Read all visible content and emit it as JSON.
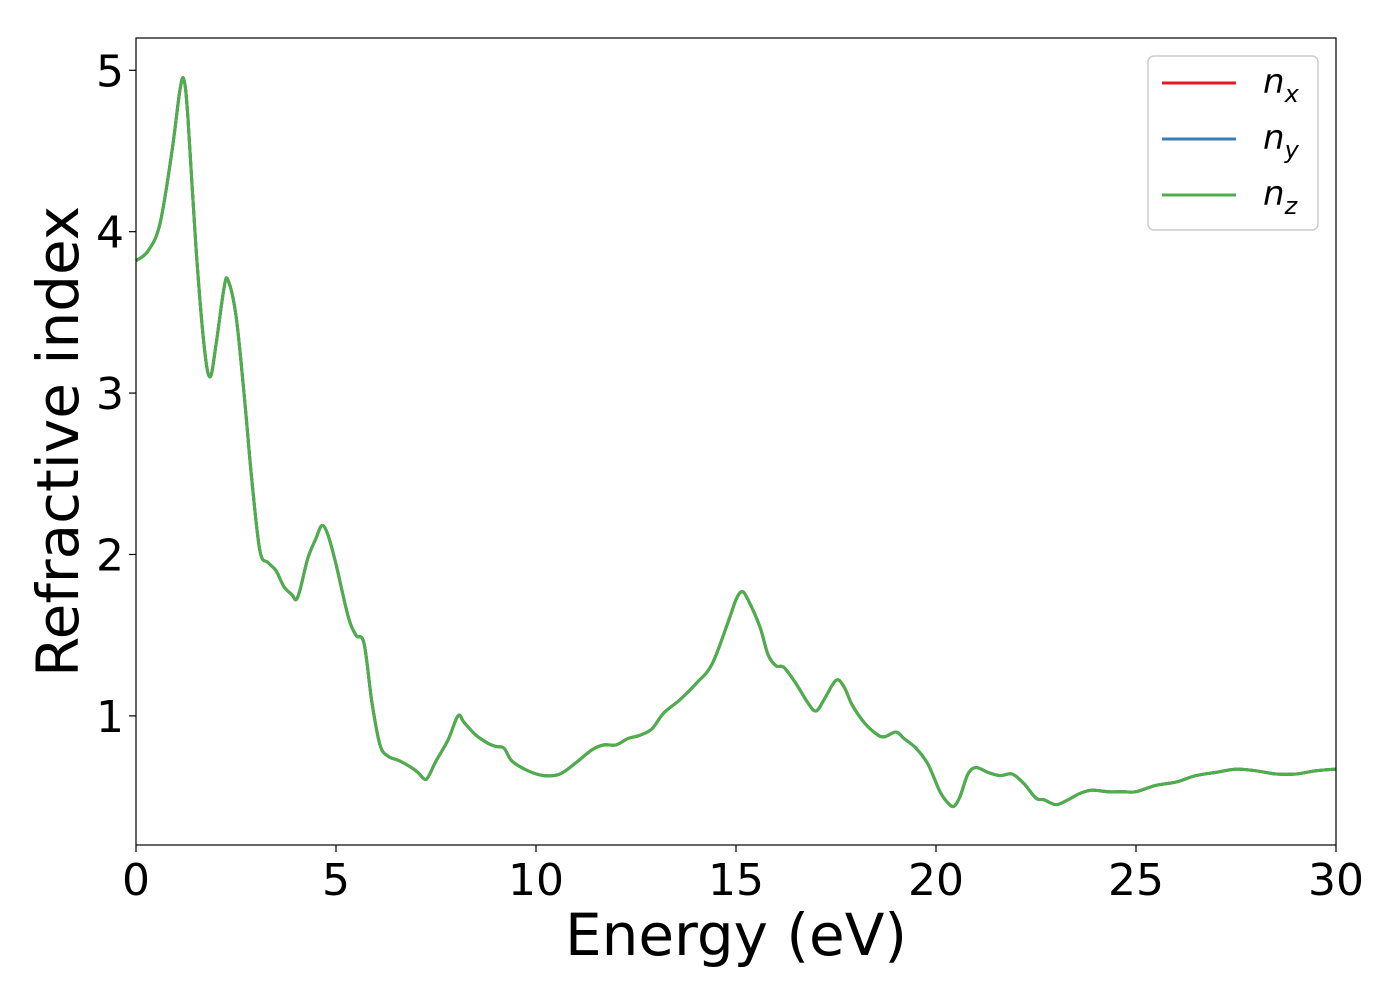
{
  "chart_data": {
    "type": "line",
    "title": "",
    "xlabel": "Energy (eV)",
    "ylabel": "Refractive index",
    "xlim": [
      0,
      30
    ],
    "ylim": [
      0.2,
      5.2
    ],
    "xticks": [
      "0",
      "5",
      "10",
      "15",
      "20",
      "25",
      "30"
    ],
    "yticks": [
      "1",
      "2",
      "3",
      "4",
      "5"
    ],
    "grid": false,
    "legend_position": "top-right",
    "series": [
      {
        "name": "n",
        "subscript": "x",
        "color": "#e41a1c"
      },
      {
        "name": "n",
        "subscript": "y",
        "color": "#377eb8"
      },
      {
        "name": "n",
        "subscript": "z",
        "color": "#4daf4a"
      }
    ],
    "x": [
      0,
      0.3,
      0.6,
      0.9,
      1.1,
      1.2,
      1.3,
      1.5,
      1.7,
      1.85,
      2.0,
      2.2,
      2.3,
      2.5,
      2.7,
      2.9,
      3.1,
      3.3,
      3.5,
      3.7,
      3.9,
      4.0,
      4.1,
      4.3,
      4.5,
      4.65,
      4.8,
      5.0,
      5.3,
      5.5,
      5.7,
      5.9,
      6.1,
      6.3,
      6.6,
      7.0,
      7.2,
      7.3,
      7.5,
      7.8,
      8.05,
      8.2,
      8.5,
      8.8,
      9.0,
      9.2,
      9.4,
      9.8,
      10.2,
      10.6,
      11.0,
      11.4,
      11.7,
      12.0,
      12.3,
      12.6,
      12.9,
      13.2,
      13.6,
      14.0,
      14.4,
      14.8,
      15.0,
      15.15,
      15.3,
      15.6,
      15.8,
      16.0,
      16.2,
      16.5,
      16.8,
      17.0,
      17.2,
      17.5,
      17.7,
      17.9,
      18.2,
      18.5,
      18.7,
      19.0,
      19.2,
      19.5,
      19.8,
      20.1,
      20.3,
      20.45,
      20.6,
      20.8,
      21.0,
      21.3,
      21.6,
      21.9,
      22.2,
      22.5,
      22.7,
      23.0,
      23.3,
      23.6,
      23.9,
      24.3,
      24.7,
      25.0,
      25.5,
      26.0,
      26.5,
      27.0,
      27.5,
      28.0,
      28.5,
      29.0,
      29.5,
      30.0
    ],
    "values": [
      3.82,
      3.88,
      4.05,
      4.5,
      4.88,
      4.94,
      4.7,
      3.9,
      3.3,
      3.1,
      3.3,
      3.65,
      3.7,
      3.48,
      3.0,
      2.45,
      2.02,
      1.95,
      1.9,
      1.8,
      1.75,
      1.72,
      1.78,
      1.98,
      2.1,
      2.18,
      2.12,
      1.94,
      1.62,
      1.5,
      1.45,
      1.08,
      0.82,
      0.75,
      0.72,
      0.66,
      0.61,
      0.62,
      0.72,
      0.85,
      1.0,
      0.96,
      0.88,
      0.83,
      0.81,
      0.8,
      0.72,
      0.66,
      0.63,
      0.64,
      0.71,
      0.79,
      0.82,
      0.82,
      0.86,
      0.88,
      0.92,
      1.02,
      1.1,
      1.2,
      1.32,
      1.58,
      1.72,
      1.77,
      1.72,
      1.55,
      1.38,
      1.31,
      1.3,
      1.2,
      1.08,
      1.03,
      1.1,
      1.22,
      1.18,
      1.07,
      0.96,
      0.89,
      0.87,
      0.9,
      0.86,
      0.8,
      0.7,
      0.53,
      0.46,
      0.44,
      0.5,
      0.64,
      0.68,
      0.65,
      0.63,
      0.64,
      0.58,
      0.49,
      0.48,
      0.45,
      0.48,
      0.52,
      0.54,
      0.53,
      0.53,
      0.53,
      0.57,
      0.59,
      0.63,
      0.65,
      0.67,
      0.66,
      0.64,
      0.64,
      0.66,
      0.67
    ]
  }
}
